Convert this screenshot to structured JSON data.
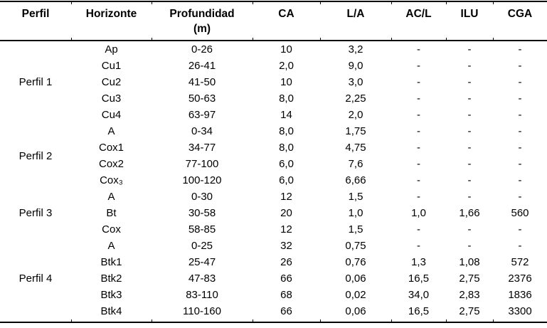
{
  "table": {
    "columns": [
      "Perfil",
      "Horizonte",
      "Profundidad",
      "CA",
      "L/A",
      "AC/L",
      "ILU",
      "CGA"
    ],
    "unit_subheader": "(m)",
    "groups": [
      {
        "perfil": "Perfil 1",
        "rows": [
          [
            "Ap",
            "0-26",
            "10",
            "3,2",
            "-",
            "-",
            "-"
          ],
          [
            "Cu1",
            "26-41",
            "2,0",
            "9,0",
            "-",
            "-",
            "-"
          ],
          [
            "Cu2",
            "41-50",
            "10",
            "3,0",
            "-",
            "-",
            "-"
          ],
          [
            "Cu3",
            "50-63",
            "8,0",
            "2,25",
            "-",
            "-",
            "-"
          ],
          [
            "Cu4",
            "63-97",
            "14",
            "2,0",
            "-",
            "-",
            "-"
          ]
        ]
      },
      {
        "perfil": "Perfil 2",
        "rows": [
          [
            "A",
            "0-34",
            "8,0",
            "1,75",
            "-",
            "-",
            "-"
          ],
          [
            "Cox1",
            "34-77",
            "8,0",
            "4,75",
            "-",
            "-",
            "-"
          ],
          [
            "Cox2",
            "77-100",
            "6,0",
            "7,6",
            "-",
            "-",
            "-"
          ],
          [
            "Cox₃",
            "100-120",
            "6,0",
            "6,66",
            "-",
            "-",
            "-"
          ]
        ]
      },
      {
        "perfil": "Perfil 3",
        "rows": [
          [
            "A",
            "0-30",
            "12",
            "1,5",
            "-",
            "-",
            "-"
          ],
          [
            "Bt",
            "30-58",
            "20",
            "1,0",
            "1,0",
            "1,66",
            "560"
          ],
          [
            "Cox",
            "58-85",
            "12",
            "1,5",
            "-",
            "-",
            "-"
          ]
        ]
      },
      {
        "perfil": "Perfil 4",
        "rows": [
          [
            "A",
            "0-25",
            "32",
            "0,75",
            "-",
            "-",
            "-"
          ],
          [
            "Btk1",
            "25-47",
            "26",
            "0,76",
            "1,3",
            "1,08",
            "572"
          ],
          [
            "Btk2",
            "47-83",
            "66",
            "0,06",
            "16,5",
            "2,75",
            "2376"
          ],
          [
            "Btk3",
            "83-110",
            "68",
            "0,02",
            "34,0",
            "2,83",
            "1836"
          ],
          [
            "Btk4",
            "110-160",
            "66",
            "0,06",
            "16,5",
            "2,75",
            "3300"
          ]
        ]
      }
    ]
  }
}
